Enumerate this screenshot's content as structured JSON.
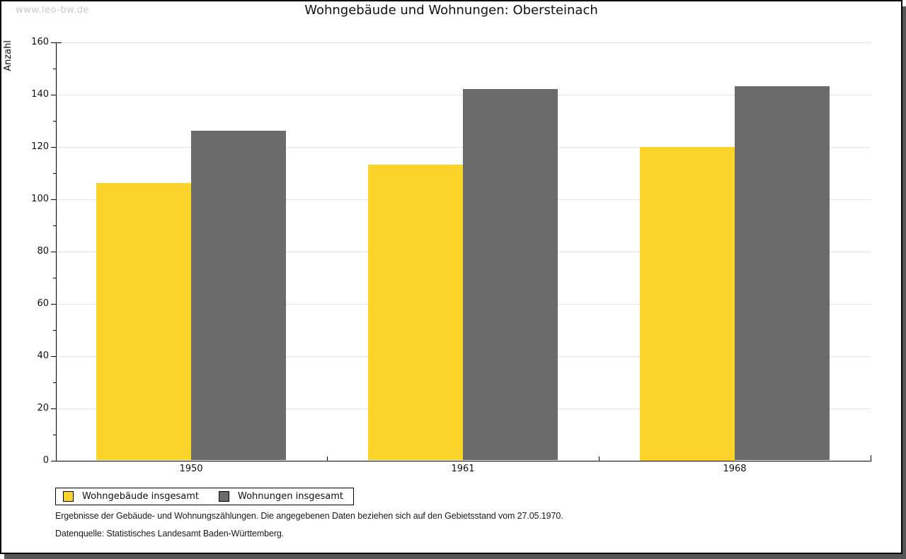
{
  "watermark": "www.leo-bw.de",
  "title": "Wohngebäude und Wohnungen: Obersteinach",
  "chart_data": {
    "type": "bar",
    "title": "Wohngebäude und Wohnungen: Obersteinach",
    "categories": [
      "1950",
      "1961",
      "1968"
    ],
    "series": [
      {
        "name": "Wohngebäude insgesamt",
        "color": "#FCD32B",
        "values": [
          106,
          113,
          120
        ]
      },
      {
        "name": "Wohnungen insgesamt",
        "color": "#6B6B6B",
        "values": [
          126,
          142,
          143
        ]
      }
    ],
    "xlabel": "",
    "ylabel": "Anzahl",
    "ylim": [
      0,
      160
    ],
    "ytick_step": 20,
    "ytick_minor_step": 10,
    "grid": true,
    "gridline_color": "#e2e2e2",
    "legend_position": "bottom-left"
  },
  "footer": {
    "line1": "Ergebnisse der Gebäude- und Wohnungszählungen. Die angegebenen Daten beziehen sich auf den Gebietsstand vom 27.05.1970.",
    "line2": "Datenquelle: Statistisches Landesamt Baden-Württemberg."
  }
}
